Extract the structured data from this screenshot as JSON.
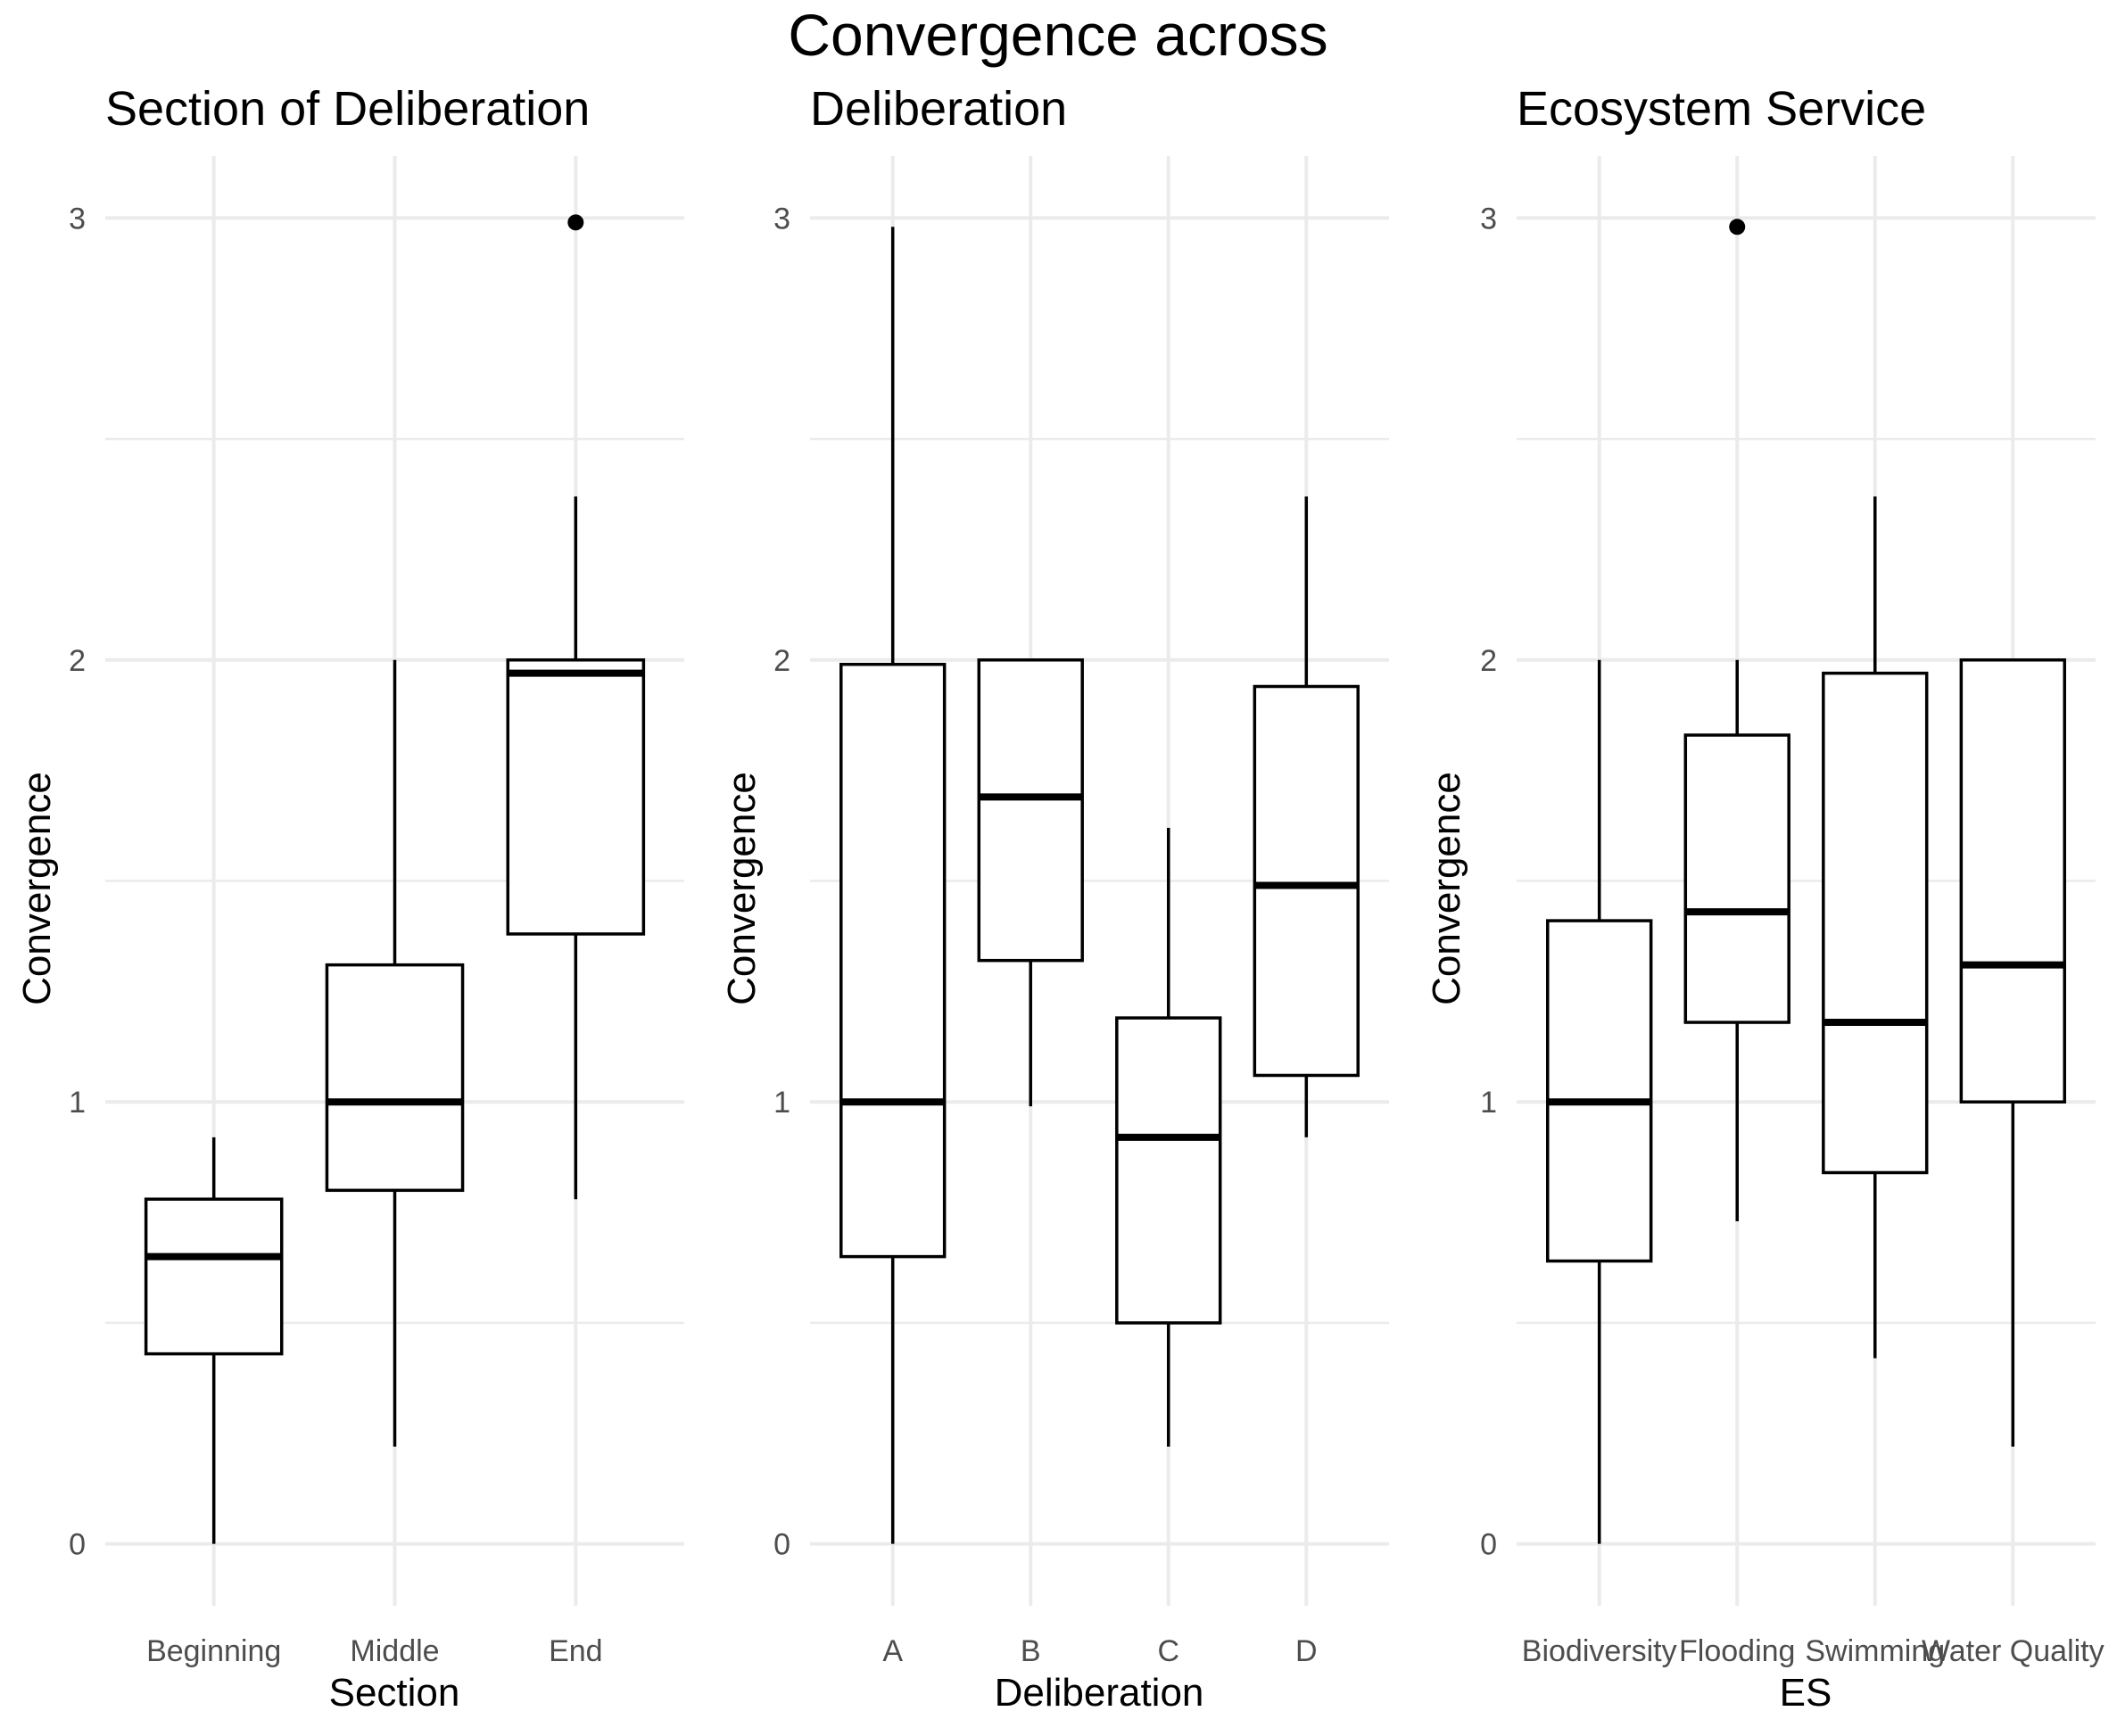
{
  "title": "Convergence across",
  "chart_data": [
    {
      "type": "boxplot",
      "title": "Section of Deliberation",
      "xlabel": "Section",
      "ylabel": "Convergence",
      "ylim": [
        -0.14,
        3.14
      ],
      "yticks": [
        0,
        1,
        2,
        3
      ],
      "grid": true,
      "categories": [
        "Beginning",
        "Middle",
        "End"
      ],
      "boxes": [
        {
          "category": "Beginning",
          "whisker_low": 0.0,
          "q1": 0.43,
          "median": 0.65,
          "q3": 0.78,
          "whisker_high": 0.92,
          "outliers": []
        },
        {
          "category": "Middle",
          "whisker_low": 0.22,
          "q1": 0.8,
          "median": 1.0,
          "q3": 1.31,
          "whisker_high": 2.0,
          "outliers": []
        },
        {
          "category": "End",
          "whisker_low": 0.78,
          "q1": 1.38,
          "median": 1.97,
          "q3": 2.0,
          "whisker_high": 2.37,
          "outliers": [
            2.99
          ]
        }
      ]
    },
    {
      "type": "boxplot",
      "title": "Deliberation",
      "xlabel": "Deliberation",
      "ylabel": "Convergence",
      "ylim": [
        -0.14,
        3.14
      ],
      "yticks": [
        0,
        1,
        2,
        3
      ],
      "grid": true,
      "categories": [
        "A",
        "B",
        "C",
        "D"
      ],
      "boxes": [
        {
          "category": "A",
          "whisker_low": 0.0,
          "q1": 0.65,
          "median": 1.0,
          "q3": 1.99,
          "whisker_high": 2.98,
          "outliers": []
        },
        {
          "category": "B",
          "whisker_low": 0.99,
          "q1": 1.32,
          "median": 1.69,
          "q3": 2.0,
          "whisker_high": 2.0,
          "outliers": []
        },
        {
          "category": "C",
          "whisker_low": 0.22,
          "q1": 0.5,
          "median": 0.92,
          "q3": 1.19,
          "whisker_high": 1.62,
          "outliers": []
        },
        {
          "category": "D",
          "whisker_low": 0.92,
          "q1": 1.06,
          "median": 1.49,
          "q3": 1.94,
          "whisker_high": 2.37,
          "outliers": []
        }
      ]
    },
    {
      "type": "boxplot",
      "title": "Ecosystem Service",
      "xlabel": "ES",
      "ylabel": "Convergence",
      "ylim": [
        -0.14,
        3.14
      ],
      "yticks": [
        0,
        1,
        2,
        3
      ],
      "grid": true,
      "categories": [
        "Biodiversity",
        "Flooding",
        "Swimming",
        "Water Quality"
      ],
      "boxes": [
        {
          "category": "Biodiversity",
          "whisker_low": 0.0,
          "q1": 0.64,
          "median": 1.0,
          "q3": 1.41,
          "whisker_high": 2.0,
          "outliers": []
        },
        {
          "category": "Flooding",
          "whisker_low": 0.73,
          "q1": 1.18,
          "median": 1.43,
          "q3": 1.83,
          "whisker_high": 2.0,
          "outliers": [
            2.98
          ]
        },
        {
          "category": "Swimming",
          "whisker_low": 0.42,
          "q1": 0.84,
          "median": 1.18,
          "q3": 1.97,
          "whisker_high": 2.37,
          "outliers": []
        },
        {
          "category": "Water Quality",
          "whisker_low": 0.22,
          "q1": 1.0,
          "median": 1.31,
          "q3": 2.0,
          "whisker_high": 2.0,
          "outliers": []
        }
      ]
    }
  ]
}
